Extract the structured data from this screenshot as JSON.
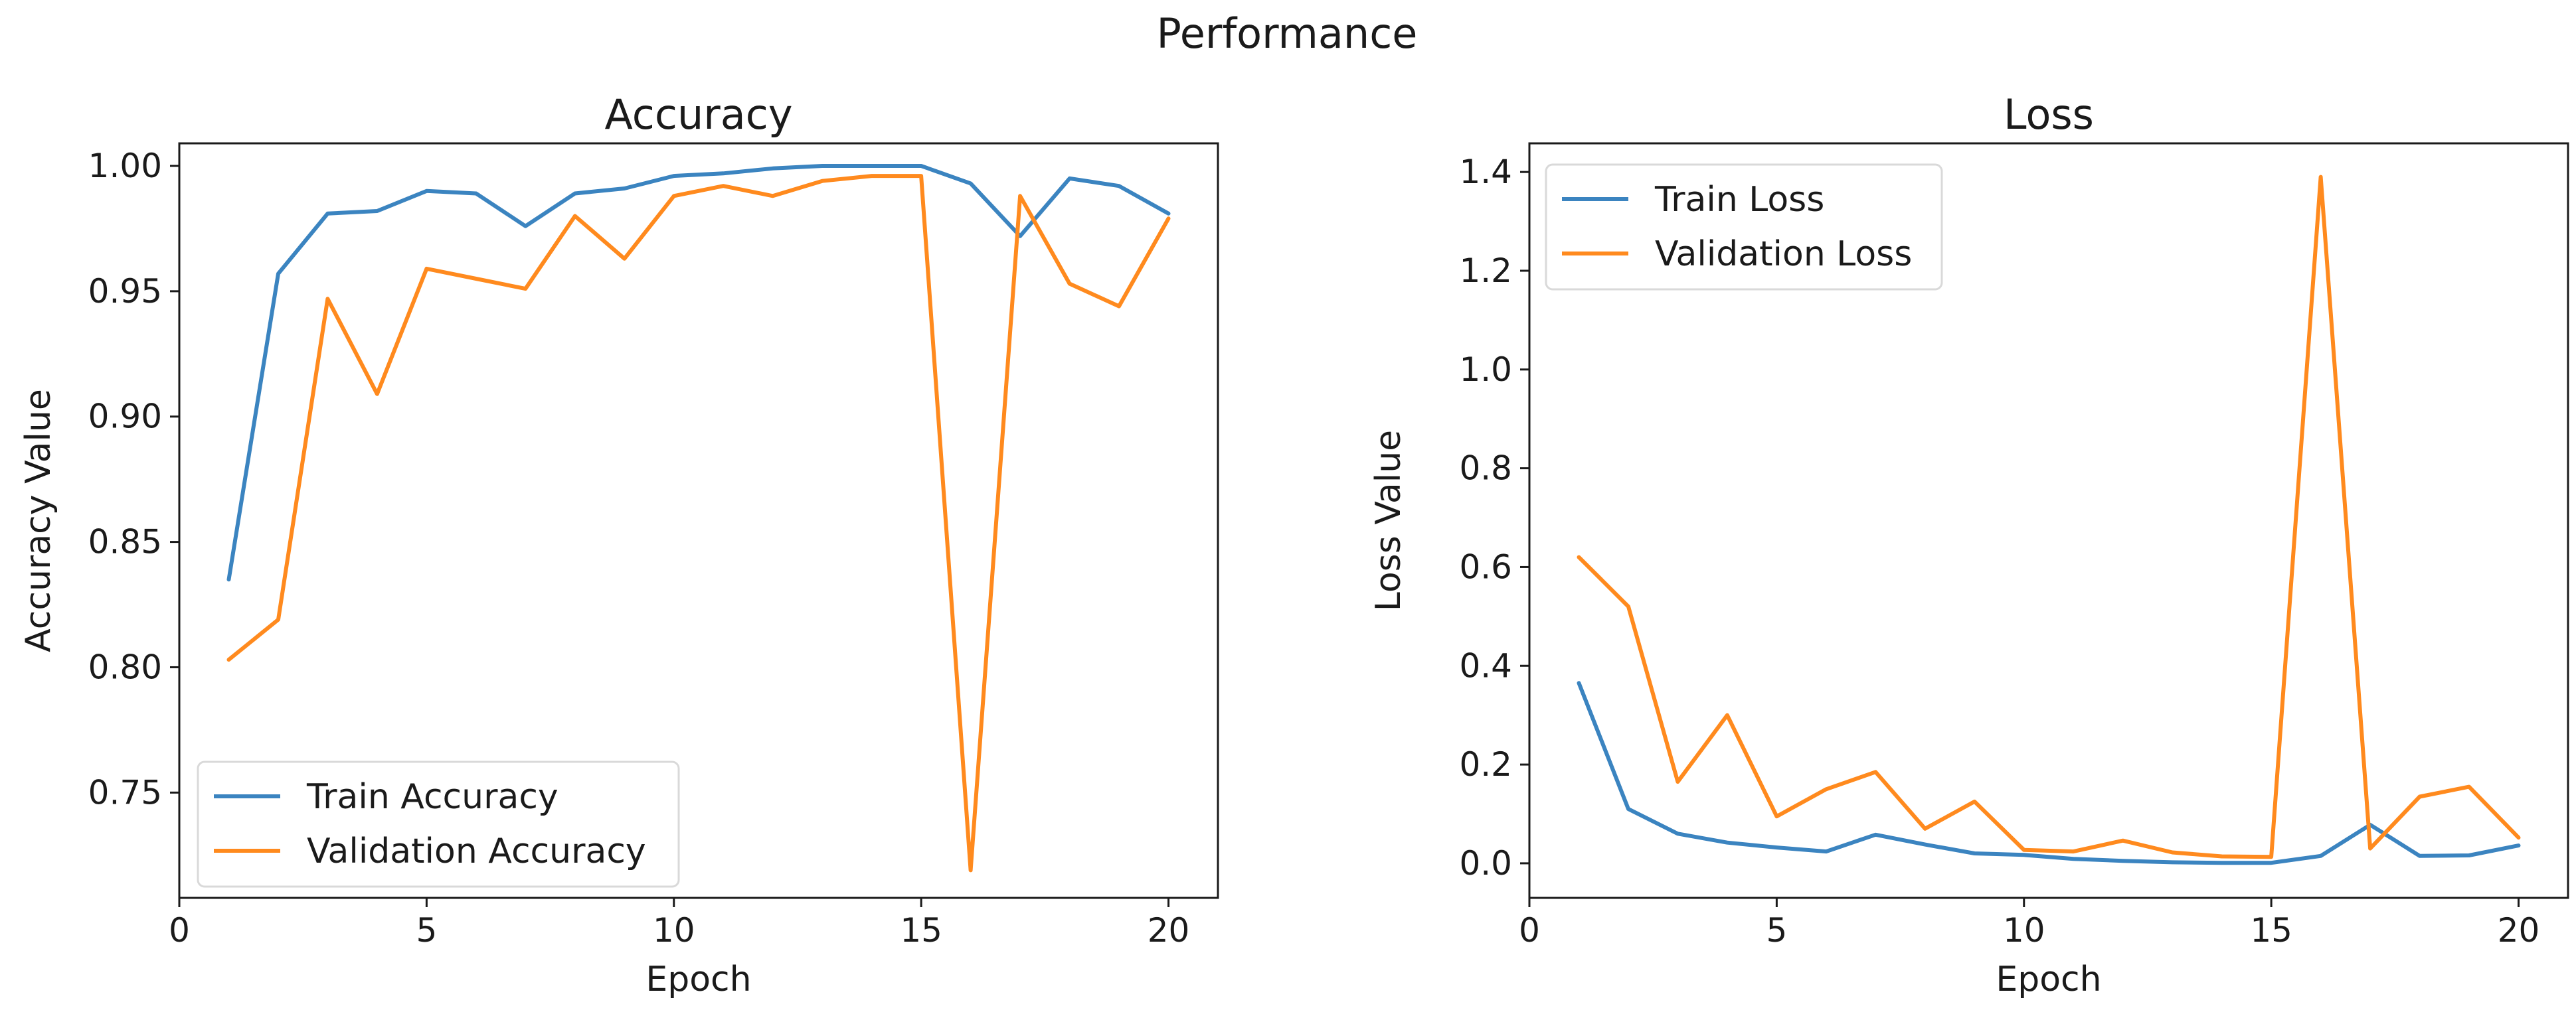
{
  "figure": {
    "title": "Performance"
  },
  "colors": {
    "series1": "#3b84c0",
    "series2": "#ff8a1e",
    "axis": "#1a1a1a",
    "legend_border": "#d9d9d9"
  },
  "chart_data": [
    {
      "type": "line",
      "title": "Accuracy",
      "xlabel": "Epoch",
      "ylabel": "Accuracy Value",
      "xlim": [
        0,
        21
      ],
      "ylim": [
        0.708,
        1.009
      ],
      "xticks": [
        0,
        5,
        10,
        15,
        20
      ],
      "yticks": [
        0.75,
        0.8,
        0.85,
        0.9,
        0.95,
        1.0
      ],
      "ytick_labels": [
        "0.75",
        "0.80",
        "0.85",
        "0.90",
        "0.95",
        "1.00"
      ],
      "legend_position": "lower-left",
      "grid": false,
      "x": [
        1,
        2,
        3,
        4,
        5,
        6,
        7,
        8,
        9,
        10,
        11,
        12,
        13,
        14,
        15,
        16,
        17,
        18,
        19,
        20
      ],
      "series": [
        {
          "name": "Train Accuracy",
          "values": [
            0.835,
            0.957,
            0.981,
            0.982,
            0.99,
            0.989,
            0.976,
            0.989,
            0.991,
            0.996,
            0.997,
            0.999,
            1.0,
            1.0,
            1.0,
            0.993,
            0.972,
            0.995,
            0.992,
            0.981
          ]
        },
        {
          "name": "Validation Accuracy",
          "values": [
            0.803,
            0.819,
            0.947,
            0.909,
            0.959,
            0.955,
            0.951,
            0.98,
            0.963,
            0.988,
            0.992,
            0.988,
            0.994,
            0.996,
            0.996,
            0.719,
            0.988,
            0.953,
            0.944,
            0.979
          ]
        }
      ]
    },
    {
      "type": "line",
      "title": "Loss",
      "xlabel": "Epoch",
      "ylabel": "Loss Value",
      "xlim": [
        0,
        21
      ],
      "ylim": [
        -0.07,
        1.458
      ],
      "xticks": [
        0,
        5,
        10,
        15,
        20
      ],
      "yticks": [
        0.0,
        0.2,
        0.4,
        0.6,
        0.8,
        1.0,
        1.2,
        1.4
      ],
      "ytick_labels": [
        "0.0",
        "0.2",
        "0.4",
        "0.6",
        "0.8",
        "1.0",
        "1.2",
        "1.4"
      ],
      "legend_position": "upper-left",
      "grid": false,
      "x": [
        1,
        2,
        3,
        4,
        5,
        6,
        7,
        8,
        9,
        10,
        11,
        12,
        13,
        14,
        15,
        16,
        17,
        18,
        19,
        20
      ],
      "series": [
        {
          "name": "Train Loss",
          "values": [
            0.365,
            0.11,
            0.06,
            0.042,
            0.032,
            0.024,
            0.058,
            0.038,
            0.02,
            0.017,
            0.009,
            0.005,
            0.002,
            0.001,
            0.001,
            0.015,
            0.078,
            0.015,
            0.016,
            0.036
          ]
        },
        {
          "name": "Validation Loss",
          "values": [
            0.62,
            0.52,
            0.165,
            0.3,
            0.095,
            0.15,
            0.185,
            0.07,
            0.125,
            0.027,
            0.024,
            0.046,
            0.022,
            0.014,
            0.013,
            1.39,
            0.03,
            0.135,
            0.155,
            0.052
          ]
        }
      ]
    }
  ]
}
